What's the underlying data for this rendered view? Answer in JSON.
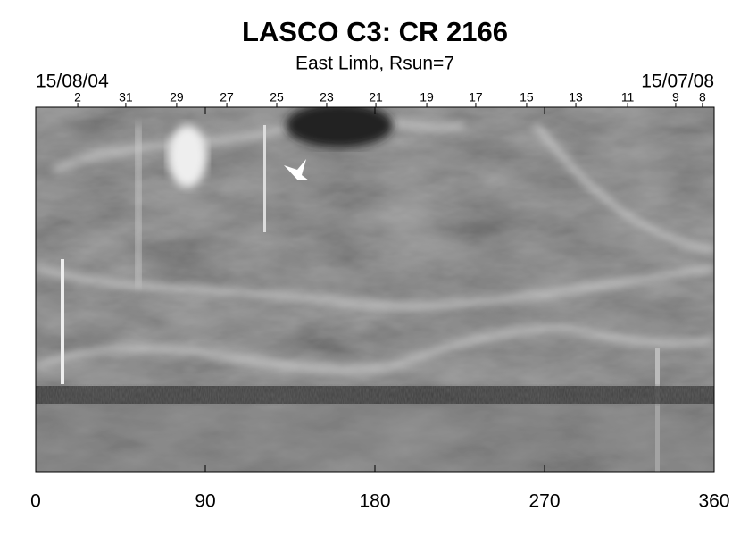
{
  "chart_data": {
    "type": "image",
    "title": "LASCO C3: CR 2166",
    "subtitle": "East Limb, Rsun=7",
    "start_date": "15/08/04",
    "end_date": "15/07/08",
    "xlim": [
      0,
      360
    ],
    "xticks": [
      0,
      90,
      180,
      270,
      360
    ],
    "x2ticks": [
      {
        "value": 22.3,
        "label": "2"
      },
      {
        "value": 47.8,
        "label": "31"
      },
      {
        "value": 74.8,
        "label": "29"
      },
      {
        "value": 101.4,
        "label": "27"
      },
      {
        "value": 127.9,
        "label": "25"
      },
      {
        "value": 154.4,
        "label": "23"
      },
      {
        "value": 180.5,
        "label": "21"
      },
      {
        "value": 207.5,
        "label": "19"
      },
      {
        "value": 233.5,
        "label": "17"
      },
      {
        "value": 260.5,
        "label": "15"
      },
      {
        "value": 286.6,
        "label": "13"
      },
      {
        "value": 314.1,
        "label": "11"
      },
      {
        "value": 339.6,
        "label": "9"
      },
      {
        "value": 353.8,
        "label": "8"
      }
    ],
    "colormap": "gray"
  }
}
